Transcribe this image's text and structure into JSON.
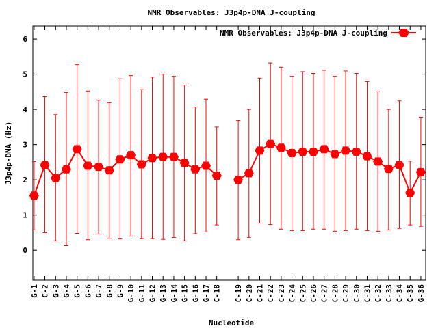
{
  "chart_data": {
    "type": "line",
    "title": "NMR Observables: J3p4p-DNA J-coupling",
    "xlabel": "Nucleotide",
    "ylabel": "J3p4p-DNA (Hz)",
    "ylim": [
      -0.85,
      6.37
    ],
    "xlim": [
      -0.12,
      36.45
    ],
    "yticks": [
      0,
      1,
      2,
      3,
      4,
      5,
      6
    ],
    "grid": false,
    "legend": {
      "position": "top-right",
      "entries": [
        "NMR Observables: J3p4p-DNA J-coupling"
      ]
    },
    "series": [
      {
        "name": "NMR Observables: J3p4p-DNA J-coupling",
        "color": "#ff0000",
        "segments": [
          {
            "x": [
              0,
              1,
              2,
              3,
              4,
              5,
              6,
              7,
              8,
              9,
              10,
              11,
              12,
              13,
              14,
              15,
              16,
              17
            ],
            "labels": [
              "G-1",
              "C-2",
              "G-3",
              "G-4",
              "G-5",
              "G-6",
              "G-7",
              "G-8",
              "G-9",
              "G-10",
              "G-11",
              "G-12",
              "G-13",
              "G-14",
              "G-15",
              "G-16",
              "G-17",
              "C-18"
            ],
            "values": [
              1.55,
              2.42,
              2.05,
              2.3,
              2.87,
              2.4,
              2.37,
              2.27,
              2.58,
              2.7,
              2.44,
              2.62,
              2.65,
              2.65,
              2.48,
              2.3,
              2.4,
              2.12
            ],
            "err_high": [
              2.52,
              4.36,
              3.85,
              4.48,
              5.27,
              4.52,
              4.26,
              4.19,
              4.87,
              4.96,
              4.56,
              4.92,
              5.0,
              4.94,
              4.69,
              4.07,
              4.29,
              3.5
            ],
            "err_low": [
              0.58,
              0.5,
              0.27,
              0.13,
              0.48,
              0.3,
              0.46,
              0.34,
              0.32,
              0.4,
              0.33,
              0.33,
              0.31,
              0.36,
              0.27,
              0.47,
              0.52,
              0.72
            ]
          },
          {
            "x": [
              19,
              20,
              21,
              22,
              23,
              24,
              25,
              26,
              27,
              28,
              29,
              30,
              31,
              32,
              33,
              34,
              35,
              36
            ],
            "labels": [
              "C-19",
              "C-20",
              "C-21",
              "C-22",
              "C-23",
              "C-24",
              "C-25",
              "C-26",
              "C-27",
              "C-28",
              "C-29",
              "C-30",
              "C-31",
              "C-32",
              "C-33",
              "C-34",
              "C-35",
              "G-36"
            ],
            "values": [
              2.0,
              2.19,
              2.83,
              3.02,
              2.91,
              2.76,
              2.8,
              2.8,
              2.87,
              2.73,
              2.83,
              2.8,
              2.67,
              2.52,
              2.31,
              2.42,
              1.63,
              2.22
            ],
            "err_high": [
              3.68,
              4.0,
              4.89,
              5.32,
              5.2,
              4.94,
              5.07,
              5.02,
              5.11,
              4.94,
              5.09,
              5.02,
              4.79,
              4.5,
              4.0,
              4.24,
              2.53,
              3.78
            ],
            "err_low": [
              0.3,
              0.36,
              0.77,
              0.73,
              0.6,
              0.56,
              0.56,
              0.6,
              0.6,
              0.54,
              0.56,
              0.6,
              0.56,
              0.54,
              0.58,
              0.62,
              0.72,
              0.68
            ]
          }
        ]
      }
    ]
  }
}
